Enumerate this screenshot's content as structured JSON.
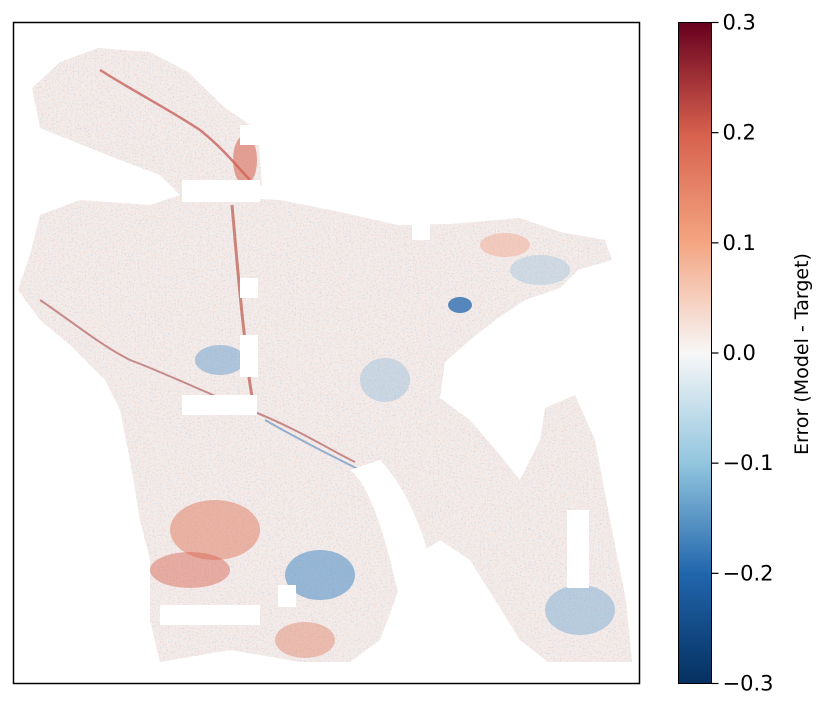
{
  "chart_data": {
    "type": "heatmap",
    "title": "",
    "xlabel": "",
    "ylabel": "",
    "colorbar": {
      "label": "Error (Model - Target)",
      "colormap": "RdBu_r",
      "vmin": -0.3,
      "vmax": 0.3,
      "ticks": [
        0.3,
        0.2,
        0.1,
        0.0,
        -0.1,
        -0.2,
        -0.3
      ],
      "tick_labels": [
        "0.3",
        "0.2",
        "0.1",
        "0.0",
        "−0.1",
        "−0.2",
        "−0.3"
      ],
      "stops": [
        {
          "value": -0.3,
          "color": "#053061"
        },
        {
          "value": -0.2,
          "color": "#2166ac"
        },
        {
          "value": -0.1,
          "color": "#92c5de"
        },
        {
          "value": 0.0,
          "color": "#f7f7f7"
        },
        {
          "value": 0.1,
          "color": "#f4a582"
        },
        {
          "value": 0.2,
          "color": "#d6604d"
        },
        {
          "value": 0.3,
          "color": "#67001f"
        }
      ]
    },
    "grid": false,
    "x_ticks": false,
    "y_ticks": false
  }
}
